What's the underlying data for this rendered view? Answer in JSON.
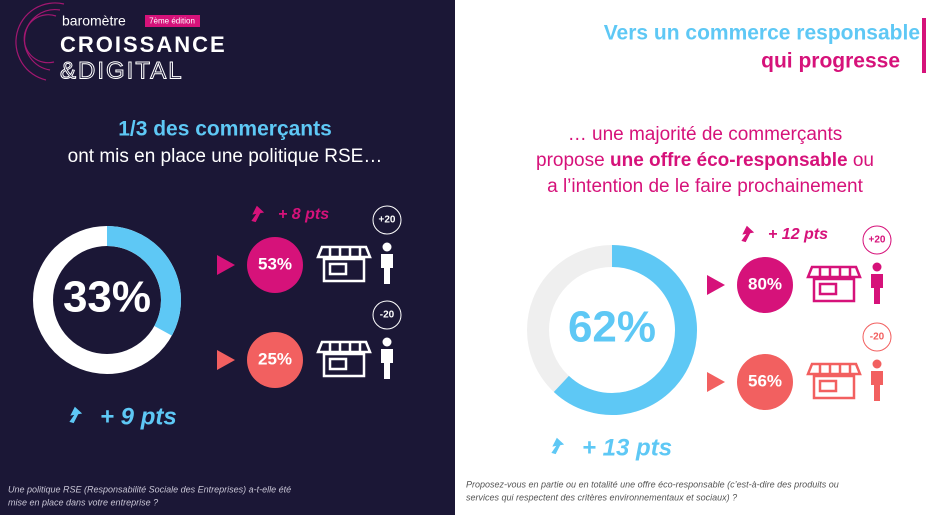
{
  "header": {
    "brand": "baromètre",
    "edition": "7ème édition",
    "title_line1": "CROISSANCE",
    "title_line2": "&DIGITAL"
  },
  "left": {
    "headline_bold": "1/3 des commerçants",
    "headline_rest": "ont mis en place une politique RSE…",
    "donut": {
      "value": 33,
      "value_label": "33%",
      "change": "+ 9 pts"
    },
    "rows": [
      {
        "value": 53,
        "value_label": "53%",
        "change": "+ 8 pts",
        "age": "+20"
      },
      {
        "value": 25,
        "value_label": "25%",
        "age": "-20"
      }
    ],
    "question": [
      "Une politique RSE (Responsabilité Sociale des Entreprises) a-t-elle été",
      "mise en place dans votre entreprise ?"
    ]
  },
  "right": {
    "title": [
      "Vers un commerce responsable",
      "qui progresse"
    ],
    "subtitle": {
      "line1": "… une majorité de commerçants",
      "line2_a": "propose ",
      "line2_bold": "une offre éco-responsable",
      "line2_b": " ou",
      "line3": "a l’intention de le faire prochainement"
    },
    "donut": {
      "value": 62,
      "value_label": "62%",
      "change": "+ 13 pts"
    },
    "rows": [
      {
        "value": 80,
        "value_label": "80%",
        "change": "+ 12 pts",
        "age": "+20"
      },
      {
        "value": 56,
        "value_label": "56%",
        "age": "-20"
      }
    ],
    "question": [
      "Proposez-vous en partie ou en totalité une offre éco-responsable (c’est-à-dire des produits ou",
      "services qui respectent des critères environnementaux et sociaux) ?"
    ]
  }
}
